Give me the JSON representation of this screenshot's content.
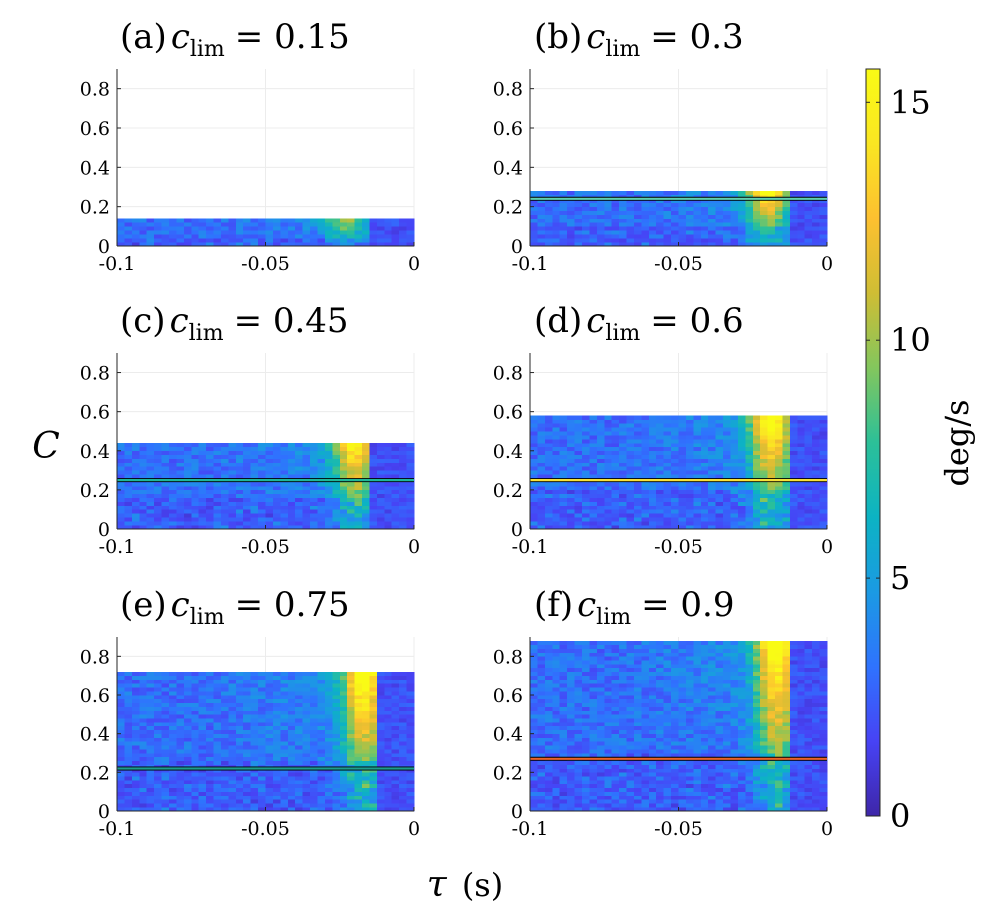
{
  "figure": {
    "ylabel": "C",
    "xlabel_symbol": "τ",
    "xlabel_unit": "(s)"
  },
  "colorbar": {
    "label": "deg/s",
    "min": 0,
    "max": 15.7,
    "ticks": [
      0,
      5,
      10,
      15
    ],
    "tick_labels": [
      "0",
      "5",
      "10",
      "15"
    ],
    "colormap": [
      "#3e26a8",
      "#4743f5",
      "#2f73fe",
      "#1b9ae3",
      "#0cb3c3",
      "#2cc098",
      "#83c65d",
      "#cfbd34",
      "#fdc030",
      "#fae622",
      "#f9fb15"
    ]
  },
  "chart_data": [
    {
      "type": "heatmap",
      "panel": "(a)",
      "title_var": "c",
      "title_sub": "lim",
      "title_val": "= 0.15",
      "c_lim": 0.15,
      "xlim": [
        -0.1,
        0
      ],
      "ylim": [
        0,
        0.9
      ],
      "xticks": [
        -0.1,
        -0.05,
        0
      ],
      "xtick_labels": [
        "-0.1",
        "-0.05",
        "0"
      ],
      "yticks": [
        0,
        0.2,
        0.4,
        0.6,
        0.8
      ],
      "ytick_labels": [
        "0",
        "0.2",
        "0.4",
        "0.6",
        "0.8"
      ],
      "data_top": 0.14,
      "peak_tau": -0.023,
      "peak_rate": 9.5,
      "background_rate": 3.0,
      "cutoff_tau": -0.015,
      "line_C": null,
      "line_color": null
    },
    {
      "type": "heatmap",
      "panel": "(b)",
      "title_var": "c",
      "title_sub": "lim",
      "title_val": "= 0.3",
      "c_lim": 0.3,
      "xlim": [
        -0.1,
        0
      ],
      "ylim": [
        0,
        0.9
      ],
      "xticks": [
        -0.1,
        -0.05,
        0
      ],
      "xtick_labels": [
        "-0.1",
        "-0.05",
        "0"
      ],
      "yticks": [
        0,
        0.2,
        0.4,
        0.6,
        0.8
      ],
      "ytick_labels": [
        "0",
        "0.2",
        "0.4",
        "0.6",
        "0.8"
      ],
      "data_top": 0.28,
      "peak_tau": -0.02,
      "peak_rate": 14.5,
      "background_rate": 3.0,
      "cutoff_tau": -0.013,
      "line_C": 0.24,
      "line_color": "#5fd0b0"
    },
    {
      "type": "heatmap",
      "panel": "(c)",
      "title_var": "c",
      "title_sub": "lim",
      "title_val": "= 0.45",
      "c_lim": 0.45,
      "xlim": [
        -0.1,
        0
      ],
      "ylim": [
        0,
        0.9
      ],
      "xticks": [
        -0.1,
        -0.05,
        0
      ],
      "xtick_labels": [
        "-0.1",
        "-0.05",
        "0"
      ],
      "yticks": [
        0,
        0.2,
        0.4,
        0.6,
        0.8
      ],
      "ytick_labels": [
        "0",
        "0.2",
        "0.4",
        "0.6",
        "0.8"
      ],
      "data_top": 0.43,
      "peak_tau": -0.02,
      "peak_rate": 14.0,
      "background_rate": 3.0,
      "cutoff_tau": -0.015,
      "line_C": 0.25,
      "line_color": "#1fb89a"
    },
    {
      "type": "heatmap",
      "panel": "(d)",
      "title_var": "c",
      "title_sub": "lim",
      "title_val": "= 0.6",
      "c_lim": 0.6,
      "xlim": [
        -0.1,
        0
      ],
      "ylim": [
        0,
        0.9
      ],
      "xticks": [
        -0.1,
        -0.05,
        0
      ],
      "xtick_labels": [
        "-0.1",
        "-0.05",
        "0"
      ],
      "yticks": [
        0,
        0.2,
        0.4,
        0.6,
        0.8
      ],
      "ytick_labels": [
        "0",
        "0.2",
        "0.4",
        "0.6",
        "0.8"
      ],
      "data_top": 0.58,
      "peak_tau": -0.019,
      "peak_rate": 15.5,
      "background_rate": 3.0,
      "cutoff_tau": -0.012,
      "line_C": 0.25,
      "line_color": "#f7e23a"
    },
    {
      "type": "heatmap",
      "panel": "(e)",
      "title_var": "c",
      "title_sub": "lim",
      "title_val": "= 0.75",
      "c_lim": 0.75,
      "xlim": [
        -0.1,
        0
      ],
      "ylim": [
        0,
        0.9
      ],
      "xticks": [
        -0.1,
        -0.05,
        0
      ],
      "xtick_labels": [
        "-0.1",
        "-0.05",
        "0"
      ],
      "yticks": [
        0,
        0.2,
        0.4,
        0.6,
        0.8
      ],
      "ytick_labels": [
        "0",
        "0.2",
        "0.4",
        "0.6",
        "0.8"
      ],
      "data_top": 0.72,
      "peak_tau": -0.017,
      "peak_rate": 15.7,
      "background_rate": 3.0,
      "cutoff_tau": -0.013,
      "line_C": 0.22,
      "line_color": "#1e9c8c"
    },
    {
      "type": "heatmap",
      "panel": "(f)",
      "title_var": "c",
      "title_sub": "lim",
      "title_val": "= 0.9",
      "c_lim": 0.9,
      "xlim": [
        -0.1,
        0
      ],
      "ylim": [
        0,
        0.9
      ],
      "xticks": [
        -0.1,
        -0.05,
        0
      ],
      "xtick_labels": [
        "-0.1",
        "-0.05",
        "0"
      ],
      "yticks": [
        0,
        0.2,
        0.4,
        0.6,
        0.8
      ],
      "ytick_labels": [
        "0",
        "0.2",
        "0.4",
        "0.6",
        "0.8"
      ],
      "data_top": 0.87,
      "peak_tau": -0.017,
      "peak_rate": 15.7,
      "background_rate": 3.0,
      "cutoff_tau": -0.013,
      "line_C": 0.27,
      "line_color": "#e8622a"
    }
  ]
}
